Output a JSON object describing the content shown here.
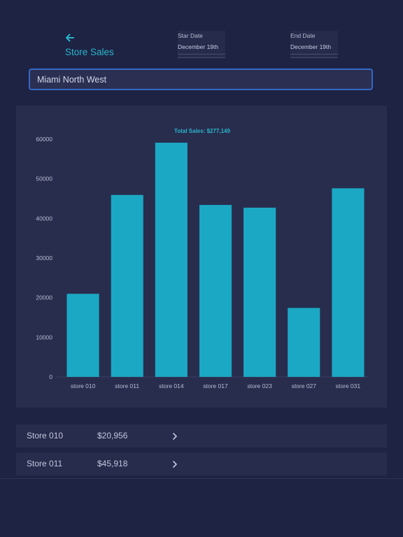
{
  "header": {
    "back_icon": "arrow-left-icon",
    "title": "Store Sales"
  },
  "start_date": {
    "label": "Star Date",
    "value": "December 19th"
  },
  "end_date": {
    "label": "End Date",
    "value": "December 19th"
  },
  "search": {
    "value": "Miami North West"
  },
  "colors": {
    "accent": "#2ab4c9",
    "bar": "#1ba8c4",
    "background": "#1e2344",
    "card": "#282d4e"
  },
  "chart_data": {
    "type": "bar",
    "title": "Total Sales: $277,149",
    "categories": [
      "store 010",
      "store 011",
      "store 014",
      "store 017",
      "store 023",
      "store 027",
      "store 031"
    ],
    "values": [
      20956,
      45918,
      59100,
      43400,
      42700,
      17400,
      47600
    ],
    "ylim": [
      0,
      60000
    ],
    "yticks": [
      0,
      10000,
      20000,
      30000,
      40000,
      50000,
      60000
    ],
    "grid": false,
    "legend": "none"
  },
  "store_list": [
    {
      "name": "Store 010",
      "amount": "$20,956"
    },
    {
      "name": "Store 011",
      "amount": "$45,918"
    }
  ]
}
